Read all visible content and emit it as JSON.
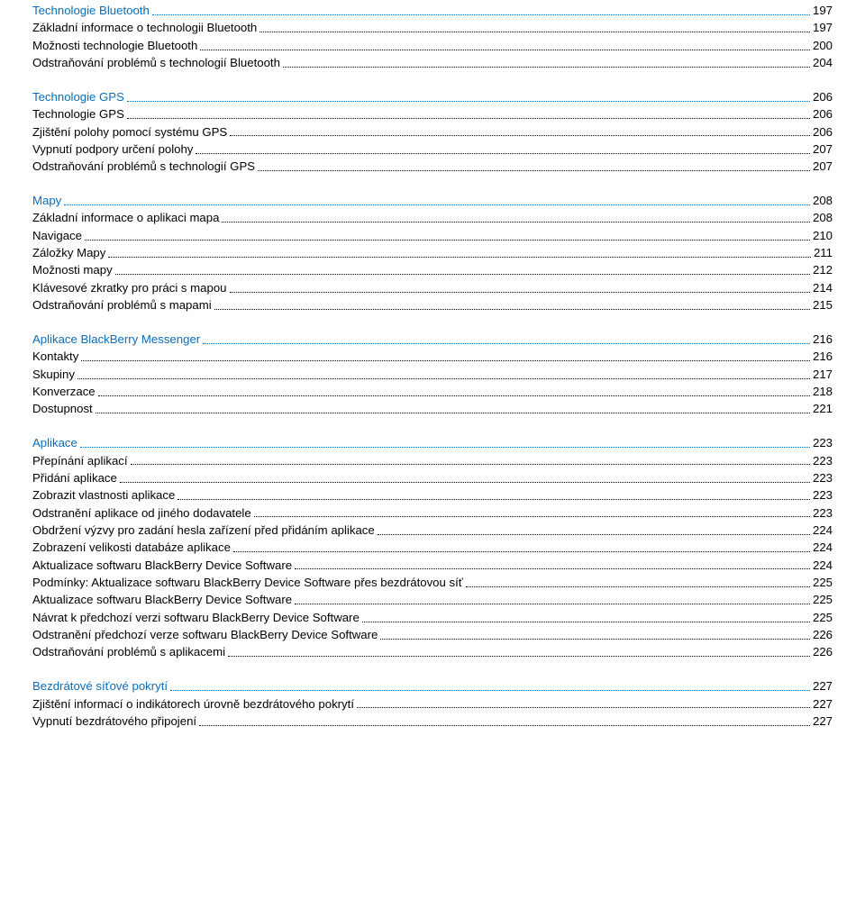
{
  "colors": {
    "heading": "#0b6cb8",
    "text": "#000000",
    "background": "#ffffff"
  },
  "typography": {
    "font_family": "Arial",
    "font_size_pt": 10,
    "line_spacing": 1.2
  },
  "sections": [
    {
      "heading": {
        "label": "Technologie Bluetooth",
        "page": "197"
      },
      "items": [
        {
          "label": "Základní informace o technologii Bluetooth",
          "page": "197"
        },
        {
          "label": "Možnosti technologie Bluetooth",
          "page": "200"
        },
        {
          "label": "Odstraňování problémů s technologií Bluetooth",
          "page": "204"
        }
      ]
    },
    {
      "heading": {
        "label": "Technologie GPS",
        "page": "206"
      },
      "items": [
        {
          "label": "Technologie GPS",
          "page": "206"
        },
        {
          "label": "Zjištění polohy pomocí systému GPS",
          "page": "206"
        },
        {
          "label": "Vypnutí podpory určení polohy",
          "page": "207"
        },
        {
          "label": "Odstraňování problémů s technologií GPS",
          "page": "207"
        }
      ]
    },
    {
      "heading": {
        "label": "Mapy",
        "page": "208"
      },
      "items": [
        {
          "label": "Základní informace o aplikaci mapa",
          "page": "208"
        },
        {
          "label": "Navigace",
          "page": "210"
        },
        {
          "label": "Záložky Mapy",
          "page": "211"
        },
        {
          "label": "Možnosti mapy",
          "page": "212"
        },
        {
          "label": "Klávesové zkratky pro práci s mapou",
          "page": "214"
        },
        {
          "label": "Odstraňování problémů s mapami",
          "page": "215"
        }
      ]
    },
    {
      "heading": {
        "label": "Aplikace BlackBerry Messenger",
        "page": "216"
      },
      "items": [
        {
          "label": "Kontakty",
          "page": "216"
        },
        {
          "label": "Skupiny",
          "page": "217"
        },
        {
          "label": "Konverzace",
          "page": "218"
        },
        {
          "label": "Dostupnost",
          "page": "221"
        }
      ]
    },
    {
      "heading": {
        "label": "Aplikace",
        "page": "223"
      },
      "items": [
        {
          "label": "Přepínání aplikací",
          "page": "223"
        },
        {
          "label": "Přidání aplikace",
          "page": "223"
        },
        {
          "label": "Zobrazit vlastnosti aplikace",
          "page": "223"
        },
        {
          "label": "Odstranění aplikace od jiného dodavatele",
          "page": "223"
        },
        {
          "label": "Obdržení výzvy pro zadání hesla zařízení před přidáním aplikace",
          "page": "224"
        },
        {
          "label": "Zobrazení velikosti databáze aplikace",
          "page": "224"
        },
        {
          "label": "Aktualizace softwaru BlackBerry Device Software",
          "page": "224"
        },
        {
          "label": "Podmínky: Aktualizace softwaru BlackBerry Device Software přes bezdrátovou síť",
          "page": "225"
        },
        {
          "label": "Aktualizace softwaru BlackBerry Device Software",
          "page": "225"
        },
        {
          "label": "Návrat k předchozí verzi softwaru BlackBerry Device Software",
          "page": "225"
        },
        {
          "label": "Odstranění předchozí verze softwaru BlackBerry Device Software",
          "page": "226"
        },
        {
          "label": "Odstraňování problémů s aplikacemi",
          "page": "226"
        }
      ]
    },
    {
      "heading": {
        "label": "Bezdrátové síťové pokrytí",
        "page": "227"
      },
      "items": [
        {
          "label": "Zjištění informací o indikátorech úrovně bezdrátového pokrytí",
          "page": "227"
        },
        {
          "label": "Vypnutí bezdrátového připojení",
          "page": "227"
        }
      ]
    }
  ]
}
